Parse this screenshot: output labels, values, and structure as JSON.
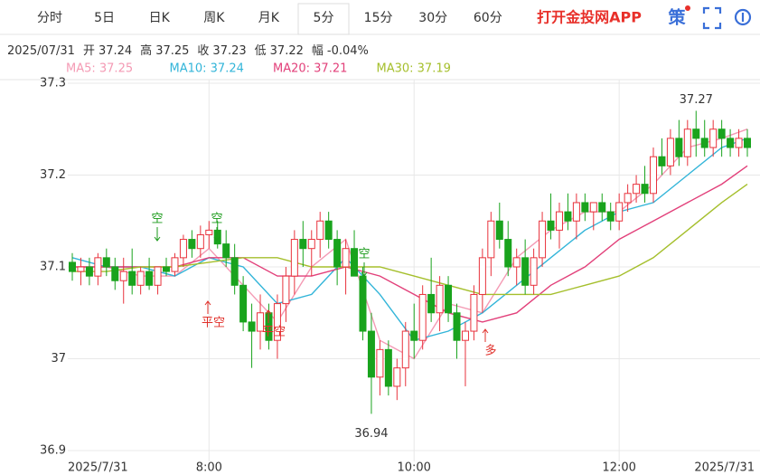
{
  "header": {
    "tabs": [
      "分时",
      "5日",
      "日K",
      "周K",
      "月K",
      "5分",
      "15分",
      "30分",
      "60分"
    ],
    "active_tab": "5分",
    "brand": "打开金投网APP",
    "strategy": "策"
  },
  "info": {
    "date": "2025/07/31",
    "fields": [
      {
        "label": "开",
        "value": 37.24
      },
      {
        "label": "高",
        "value": 37.25
      },
      {
        "label": "收",
        "value": 37.23
      },
      {
        "label": "低",
        "value": 37.22
      },
      {
        "label": "幅",
        "value": "-0.04%"
      }
    ]
  },
  "chart_data": {
    "type": "candlestick",
    "xlim": [
      0,
      79
    ],
    "xticks": [
      {
        "value": 0,
        "label": "2025/7/31"
      },
      {
        "value": 16,
        "label": "8:00"
      },
      {
        "value": 40,
        "label": "10:00"
      },
      {
        "value": 64,
        "label": "12:00"
      },
      {
        "value": 79,
        "label": "2025/7/31"
      }
    ],
    "ylim": [
      36.9,
      37.3
    ],
    "yticks": [
      36.9,
      37,
      37.1,
      37.2,
      37.3
    ],
    "grid": true,
    "up_color": "#e8323c",
    "down_color": "#19a31d",
    "candles": {
      "open": [
        37.105,
        37.095,
        37.1,
        37.09,
        37.11,
        37.1,
        37.085,
        37.095,
        37.08,
        37.095,
        37.08,
        37.1,
        37.095,
        37.11,
        37.13,
        37.12,
        37.135,
        37.14,
        37.125,
        37.11,
        37.08,
        37.04,
        37.03,
        37.05,
        37.02,
        37.06,
        37.09,
        37.13,
        37.12,
        37.13,
        37.15,
        37.13,
        37.1,
        37.12,
        37.09,
        37.03,
        36.98,
        37.01,
        36.97,
        36.99,
        37.03,
        37.02,
        37.07,
        37.05,
        37.08,
        37.05,
        37.02,
        37.03,
        37.07,
        37.11,
        37.15,
        37.13,
        37.1,
        37.11,
        37.08,
        37.11,
        37.15,
        37.14,
        37.16,
        37.15,
        37.17,
        37.16,
        37.17,
        37.16,
        37.15,
        37.17,
        37.18,
        37.19,
        37.18,
        37.22,
        37.21,
        37.24,
        37.22,
        37.25,
        37.24,
        37.23,
        37.25,
        37.24,
        37.23,
        37.24
      ],
      "high": [
        37.115,
        37.11,
        37.11,
        37.115,
        37.12,
        37.11,
        37.11,
        37.12,
        37.1,
        37.11,
        37.1,
        37.11,
        37.115,
        37.135,
        37.14,
        37.145,
        37.15,
        37.15,
        37.14,
        37.125,
        37.09,
        37.06,
        37.07,
        37.06,
        37.07,
        37.1,
        37.14,
        37.15,
        37.14,
        37.16,
        37.16,
        37.14,
        37.13,
        37.14,
        37.1,
        37.05,
        37.02,
        37.02,
        37,
        37.04,
        37.06,
        37.08,
        37.11,
        37.09,
        37.09,
        37.06,
        37.04,
        37.08,
        37.12,
        37.16,
        37.17,
        37.15,
        37.12,
        37.13,
        37.12,
        37.16,
        37.18,
        37.17,
        37.18,
        37.18,
        37.18,
        37.17,
        37.18,
        37.17,
        37.18,
        37.19,
        37.2,
        37.21,
        37.23,
        37.24,
        37.25,
        37.26,
        37.26,
        37.27,
        37.26,
        37.26,
        37.26,
        37.25,
        37.25,
        37.25
      ],
      "low": [
        37.085,
        37.08,
        37.08,
        37.08,
        37.09,
        37.075,
        37.06,
        37.07,
        37.07,
        37.075,
        37.07,
        37.09,
        37.09,
        37.1,
        37.11,
        37.11,
        37.12,
        37.12,
        37.1,
        37.07,
        37.03,
        36.99,
        37.01,
        37.01,
        37,
        37.04,
        37.07,
        37.1,
        37.09,
        37.11,
        37.12,
        37.08,
        37.07,
        37.09,
        37.02,
        36.94,
        36.96,
        36.96,
        36.955,
        36.97,
        37,
        37.01,
        37.04,
        37.03,
        37.04,
        37,
        36.97,
        37.02,
        37.05,
        37.09,
        37.12,
        37.09,
        37.08,
        37.07,
        37.07,
        37.1,
        37.13,
        37.12,
        37.14,
        37.13,
        37.15,
        37.14,
        37.15,
        37.14,
        37.14,
        37.16,
        37.17,
        37.17,
        37.17,
        37.2,
        37.2,
        37.21,
        37.21,
        37.22,
        37.22,
        37.22,
        37.22,
        37.22,
        37.22,
        37.22
      ],
      "close": [
        37.095,
        37.1,
        37.09,
        37.11,
        37.1,
        37.085,
        37.095,
        37.08,
        37.095,
        37.08,
        37.1,
        37.095,
        37.11,
        37.13,
        37.12,
        37.135,
        37.14,
        37.125,
        37.11,
        37.08,
        37.04,
        37.03,
        37.05,
        37.02,
        37.06,
        37.09,
        37.13,
        37.12,
        37.13,
        37.15,
        37.13,
        37.1,
        37.12,
        37.09,
        37.03,
        36.98,
        37.01,
        36.97,
        36.99,
        37.03,
        37.02,
        37.07,
        37.05,
        37.08,
        37.05,
        37.02,
        37.03,
        37.07,
        37.11,
        37.15,
        37.13,
        37.1,
        37.11,
        37.08,
        37.11,
        37.15,
        37.14,
        37.16,
        37.15,
        37.17,
        37.16,
        37.17,
        37.16,
        37.15,
        37.17,
        37.18,
        37.19,
        37.18,
        37.22,
        37.21,
        37.24,
        37.22,
        37.25,
        37.24,
        37.23,
        37.25,
        37.24,
        37.23,
        37.24,
        37.23
      ]
    },
    "series": [
      {
        "name": "MA5: 37.25",
        "color": "#f49ab4",
        "x": [
          0,
          4,
          8,
          12,
          16,
          20,
          24,
          28,
          32,
          36,
          40,
          44,
          48,
          52,
          56,
          60,
          64,
          68,
          72,
          76,
          79
        ],
        "values": [
          37.1,
          37.1,
          37.09,
          37.09,
          37.12,
          37.08,
          37.04,
          37.1,
          37.13,
          37.02,
          37,
          37.06,
          37.05,
          37.11,
          37.14,
          37.16,
          37.16,
          37.19,
          37.23,
          37.24,
          37.25
        ]
      },
      {
        "name": "MA10: 37.24",
        "color": "#33b5d9",
        "x": [
          0,
          4,
          8,
          12,
          16,
          20,
          24,
          28,
          32,
          36,
          40,
          44,
          48,
          52,
          56,
          60,
          64,
          68,
          72,
          76,
          79
        ],
        "values": [
          37.11,
          37.1,
          37.1,
          37.09,
          37.11,
          37.1,
          37.06,
          37.07,
          37.11,
          37.07,
          37.02,
          37.03,
          37.05,
          37.08,
          37.11,
          37.14,
          37.16,
          37.17,
          37.2,
          37.23,
          37.24
        ]
      },
      {
        "name": "MA20: 37.21",
        "color": "#e2407a",
        "x": [
          0,
          4,
          8,
          12,
          16,
          20,
          24,
          28,
          32,
          36,
          40,
          44,
          48,
          52,
          56,
          60,
          64,
          68,
          72,
          76,
          79
        ],
        "values": [
          37.1,
          37.1,
          37.1,
          37.1,
          37.11,
          37.11,
          37.09,
          37.09,
          37.1,
          37.09,
          37.07,
          37.05,
          37.04,
          37.05,
          37.08,
          37.1,
          37.13,
          37.15,
          37.17,
          37.19,
          37.21
        ]
      },
      {
        "name": "MA30: 37.19",
        "color": "#a5bf2c",
        "x": [
          0,
          4,
          8,
          12,
          16,
          20,
          24,
          28,
          32,
          36,
          40,
          44,
          48,
          52,
          56,
          60,
          64,
          68,
          72,
          76,
          79
        ],
        "values": [
          37.095,
          37.095,
          37.1,
          37.1,
          37.105,
          37.11,
          37.11,
          37.1,
          37.1,
          37.1,
          37.09,
          37.08,
          37.07,
          37.07,
          37.07,
          37.08,
          37.09,
          37.11,
          37.14,
          37.17,
          37.19
        ]
      }
    ],
    "annotations": [
      "空",
      "空",
      "空",
      "平空",
      "平空",
      "多"
    ]
  }
}
